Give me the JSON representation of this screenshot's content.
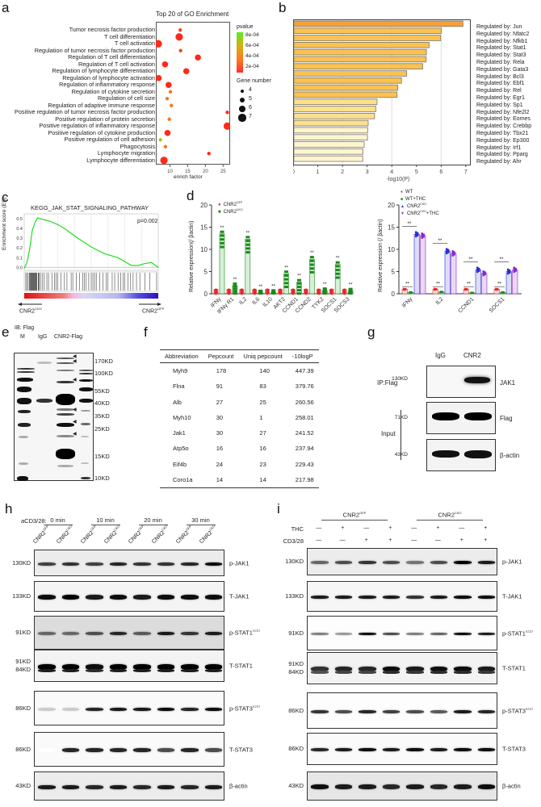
{
  "panels": {
    "a": "a",
    "b": "b",
    "c": "c",
    "d": "d",
    "e": "e",
    "f": "f",
    "g": "g",
    "h": "h",
    "i": "i"
  },
  "chart_data": [
    {
      "id": "a",
      "type": "scatter",
      "title": "Top 20 of GO Enrichment",
      "xlabel": "enrich factor",
      "ylabel": "",
      "xlim": [
        6,
        27
      ],
      "xticks": [
        10,
        15,
        20,
        25
      ],
      "legend_color_title": "pvalue",
      "legend_color_ticks": [
        "8e-04",
        "6e-04",
        "4e-04",
        "2e-04"
      ],
      "legend_size_title": "Gene number",
      "legend_size_ticks": [
        4,
        5,
        6,
        7
      ],
      "categories": [
        "Tumor necrosis factor production",
        "T cell differentiation",
        "T cell activation",
        "Regulation of tumor necrosis factor production",
        "Regulation of T cell differentiation",
        "Regulation of T cell activation",
        "Regulation of lymphocyte differentiation",
        "Regulation of lymphocyte activation",
        "Regulation of inflammatory response",
        "Regulation of cytokine secretion",
        "Regulation of cell size",
        "Regulation of adaptive immune response",
        "Positive regulation of tumor necrosis factor production",
        "Positive regulation of protein secretion",
        "Positive regulation of inflammatory response",
        "Positive regulation of cytokine production",
        "Positive regulation of cell adhesion",
        "Phagocytosis",
        "Lymphocyte migration",
        "Lymphocyte differentiation"
      ],
      "enrich_factor": [
        12.9,
        12.6,
        6.7,
        13.0,
        17.9,
        8.6,
        14.6,
        6.8,
        9.6,
        10.1,
        9.2,
        10.4,
        26.2,
        9.8,
        26.2,
        9.3,
        7.3,
        8.7,
        21.0,
        8.3
      ],
      "gene_number": [
        4,
        7,
        7,
        4,
        6,
        6,
        6,
        6,
        6,
        4,
        4,
        4,
        4,
        4,
        7,
        6,
        4,
        4,
        4,
        7
      ],
      "pvalue": [
        5e-05,
        1e-05,
        1e-05,
        5e-05,
        1e-05,
        3e-05,
        1e-05,
        3e-05,
        2e-05,
        0.00015,
        0.00018,
        0.00015,
        1e-05,
        0.00015,
        1e-05,
        2e-05,
        0.0004,
        0.0002,
        1e-05,
        2e-05
      ]
    },
    {
      "id": "b",
      "type": "bar",
      "orientation": "horizontal",
      "xlabel": "-log10(P)",
      "xlim": [
        0,
        7.2
      ],
      "xticks": [
        0,
        1,
        2,
        3,
        4,
        5,
        6,
        7
      ],
      "categories": [
        "Regulated by: Jun",
        "Regulated by: Nfatc2",
        "Regulated by: Nfkb1",
        "Regulated by: Stat1",
        "Regulated by: Stat3",
        "Regulated by: Rela",
        "Regulated by: Gata3",
        "Regulated by: Bcl3",
        "Regulated by: Ebf1",
        "Regulated by: Rel",
        "Regulated by: Egr1",
        "Regulated by: Sp1",
        "Regulated by: Nfe2l2",
        "Regulated by: Eomes",
        "Regulated by: Crebbp",
        "Regulated by: Tbx21",
        "Regulated by: Ep300",
        "Regulated by: Irf1",
        "Regulated by: Pparg",
        "Regulated by: Ahr"
      ],
      "values": [
        6.85,
        5.97,
        5.95,
        5.48,
        5.37,
        5.36,
        5.22,
        4.57,
        4.36,
        4.21,
        4.18,
        3.37,
        3.32,
        3.27,
        3.01,
        2.99,
        2.98,
        2.85,
        2.8,
        2.79
      ],
      "colors": [
        "#f7a035",
        "#fbc250",
        "#fbc250",
        "#fbc250",
        "#fbc250",
        "#fbc250",
        "#fbc250",
        "#fbc250",
        "#fbc250",
        "#fbc250",
        "#fbc250",
        "#fde08a",
        "#fde08a",
        "#fde08a",
        "#fde08a",
        "#fef6cc",
        "#fef6cc",
        "#fef6cc",
        "#fef6cc",
        "#fef6cc"
      ]
    },
    {
      "id": "c",
      "type": "line",
      "title": "KEGG_JAK_STAT_SIGNALING_PATHWAY",
      "ylabel": "Enrichment score (ES)",
      "yticks": [
        0.0,
        0.1,
        0.2,
        0.3,
        0.4,
        0.5
      ],
      "annotation": "p=0.002",
      "left_label": "CNR2",
      "left_label_sup": "CKO",
      "right_label": "CNR2",
      "right_label_sup": "GFP",
      "x": [
        0,
        0.02,
        0.04,
        0.06,
        0.08,
        0.1,
        0.12,
        0.15,
        0.2,
        0.25,
        0.3,
        0.35,
        0.4,
        0.5,
        0.6,
        0.7,
        0.8,
        0.85,
        0.9,
        0.95,
        1.0
      ],
      "y": [
        -0.01,
        0.05,
        0.18,
        0.38,
        0.46,
        0.51,
        0.5,
        0.49,
        0.47,
        0.44,
        0.4,
        0.35,
        0.3,
        0.21,
        0.14,
        0.1,
        0.02,
        0.02,
        0.04,
        0.05,
        0.0
      ]
    },
    {
      "id": "d_left",
      "type": "bar",
      "ylabel": "Relative expression(/ βactin)",
      "ylim": [
        0,
        20
      ],
      "yticks": [
        0,
        5,
        10,
        15,
        20
      ],
      "categories": [
        "IFNγ",
        "IFNγ R1",
        "IL2",
        "IL6",
        "IL10",
        "AKT2",
        "CCND1",
        "CCND2",
        "TYK2",
        "SOCS1",
        "SOCS3"
      ],
      "series": [
        {
          "name": "CNR2GFP",
          "color": "#e8262b",
          "values": [
            1,
            1,
            1,
            1,
            1,
            1,
            1,
            1,
            1,
            1,
            1
          ]
        },
        {
          "name": "CNR2CKO",
          "color": "#1a8a1a",
          "values": [
            13.5,
            1.8,
            12.3,
            0.2,
            0.3,
            4.5,
            2.6,
            7.8,
            0.7,
            6.6,
            0.6
          ]
        }
      ],
      "significance": [
        "**",
        "**",
        "**",
        "**",
        "**",
        "**",
        "**",
        "**",
        "**",
        "**",
        "**"
      ]
    },
    {
      "id": "d_right",
      "type": "bar",
      "ylabel": "Relative expression (/ βactin)",
      "ylim": [
        0,
        20
      ],
      "yticks": [
        0,
        5,
        10,
        15,
        20
      ],
      "categories": [
        "IFNγ",
        "IL2",
        "CCND1",
        "SOCS1"
      ],
      "series": [
        {
          "name": "WT",
          "color": "#e8262b",
          "values": [
            1.0,
            1.0,
            1.0,
            1.0
          ]
        },
        {
          "name": "WT+THC",
          "color": "#1a8a1a",
          "values": [
            0.3,
            0.4,
            0.2,
            0.3
          ]
        },
        {
          "name": "CNR2CKO",
          "color": "#2b2bd6",
          "values": [
            13.4,
            9.6,
            5.4,
            5.0
          ]
        },
        {
          "name": "CNR2CKO+THC",
          "color": "#8a2bc9",
          "values": [
            13.1,
            9.1,
            4.6,
            5.4
          ]
        }
      ],
      "significance": [
        "**",
        "**",
        "**",
        "**"
      ]
    }
  ],
  "legend_d_left": [
    {
      "label": "CNR2",
      "sup": "GFP",
      "color": "#e8262b",
      "marker": "●"
    },
    {
      "label": "CNR2",
      "sup": "CKO",
      "color": "#1a8a1a",
      "marker": "■"
    }
  ],
  "legend_d_right": [
    {
      "label": "WT",
      "sup": "",
      "suffix": "",
      "color": "#e8262b",
      "marker": "●"
    },
    {
      "label": "WT+THC",
      "sup": "",
      "suffix": "",
      "color": "#1a8a1a",
      "marker": "■"
    },
    {
      "label": "CNR2",
      "sup": "CKO",
      "suffix": "",
      "color": "#2b2bd6",
      "marker": "▲"
    },
    {
      "label": "CNR2",
      "sup": "CKO",
      "suffix": "+THC",
      "color": "#8a2bc9",
      "marker": "▼"
    }
  ],
  "panel_e": {
    "header": "IB: Flag",
    "lanes": [
      "M",
      "IgG",
      "CNR2-Flag"
    ],
    "markers": [
      "170KD",
      "100KD",
      "55KD",
      "40KD",
      "35KD",
      "25KD",
      "15KD",
      "10KD"
    ]
  },
  "panel_f": {
    "columns": [
      "Abbreviation",
      "Pepcount",
      "Uniq pepcount",
      "-10logP"
    ],
    "rows": [
      [
        "Myh9",
        "178",
        "140",
        "447.39"
      ],
      [
        "Flna",
        "91",
        "83",
        "379.76"
      ],
      [
        "Alb",
        "27",
        "25",
        "260.56"
      ],
      [
        "Myh10",
        "30",
        "1",
        "258.01"
      ],
      [
        "Jak1",
        "30",
        "27",
        "241.52"
      ],
      [
        "Atp5o",
        "16",
        "16",
        "237.94"
      ],
      [
        "Eif4b",
        "24",
        "23",
        "229.43"
      ],
      [
        "Coro1a",
        "14",
        "14",
        "217.98"
      ]
    ]
  },
  "panel_g": {
    "lanes": [
      "IgG",
      "CNR2"
    ],
    "ip_label": "IP:Flag",
    "input_label": "Input",
    "blots": [
      {
        "kd": "130KD",
        "label": "JAK1"
      },
      {
        "kd": "71KD",
        "label": "Flag"
      },
      {
        "kd": "43KD",
        "label": "β-actin"
      }
    ]
  },
  "panel_h": {
    "treatment_label": "aCD3/28:",
    "timepoints": [
      "0 min",
      "10 min",
      "20 min",
      "30 min"
    ],
    "lanes": [
      {
        "name": "CNR2",
        "sup": "GFP"
      },
      {
        "name": "CNR2",
        "sup": "CKO"
      },
      {
        "name": "CNR2",
        "sup": "GFP"
      },
      {
        "name": "CNR2",
        "sup": "CKO"
      },
      {
        "name": "CNR2",
        "sup": "GFP"
      },
      {
        "name": "CNR2",
        "sup": "CKO"
      },
      {
        "name": "CNR2",
        "sup": "GFP"
      },
      {
        "name": "CNR2",
        "sup": "CKO"
      }
    ],
    "blots": [
      {
        "kd": "130KD",
        "kd2": "",
        "label": "p-JAK1",
        "sup": ""
      },
      {
        "kd": "133KD",
        "kd2": "",
        "label": "T-JAK1",
        "sup": ""
      },
      {
        "kd": "91KD",
        "kd2": "",
        "label": "p-STAT1",
        "sup": "S727"
      },
      {
        "kd": "91KD",
        "kd2": "84KD",
        "label": "T-STAT1",
        "sup": ""
      },
      {
        "kd": "86KD",
        "kd2": "",
        "label": "p-STAT3",
        "sup": "S727"
      },
      {
        "kd": "86KD",
        "kd2": "",
        "label": "T-STAT3",
        "sup": ""
      },
      {
        "kd": "43KD",
        "kd2": "",
        "label": "β-actin",
        "sup": ""
      }
    ]
  },
  "panel_i": {
    "groups": [
      {
        "name": "CNR2",
        "sup": "GFP"
      },
      {
        "name": "CNR2",
        "sup": "CKO"
      }
    ],
    "rows": [
      {
        "label": "THC",
        "values": [
          "—",
          "+",
          "—",
          "+",
          "—",
          "+",
          "—",
          "+"
        ]
      },
      {
        "label": "CD3/28",
        "values": [
          "—",
          "—",
          "+",
          "+",
          "—",
          "—",
          "+",
          "+"
        ]
      }
    ],
    "blots": [
      {
        "kd": "130KD",
        "kd2": "",
        "label": "p-JAK1",
        "sup": ""
      },
      {
        "kd": "133KD",
        "kd2": "",
        "label": "T-JAK1",
        "sup": ""
      },
      {
        "kd": "91KD",
        "kd2": "",
        "label": "p-STAT1",
        "sup": "S727"
      },
      {
        "kd": "91KD",
        "kd2": "84KD",
        "label": "T-STAT1",
        "sup": ""
      },
      {
        "kd": "86KD",
        "kd2": "",
        "label": "p-STAT3",
        "sup": "S727"
      },
      {
        "kd": "86KD",
        "kd2": "",
        "label": "T-STAT3",
        "sup": ""
      },
      {
        "kd": "43KD",
        "kd2": "",
        "label": "β-actin",
        "sup": ""
      }
    ]
  }
}
